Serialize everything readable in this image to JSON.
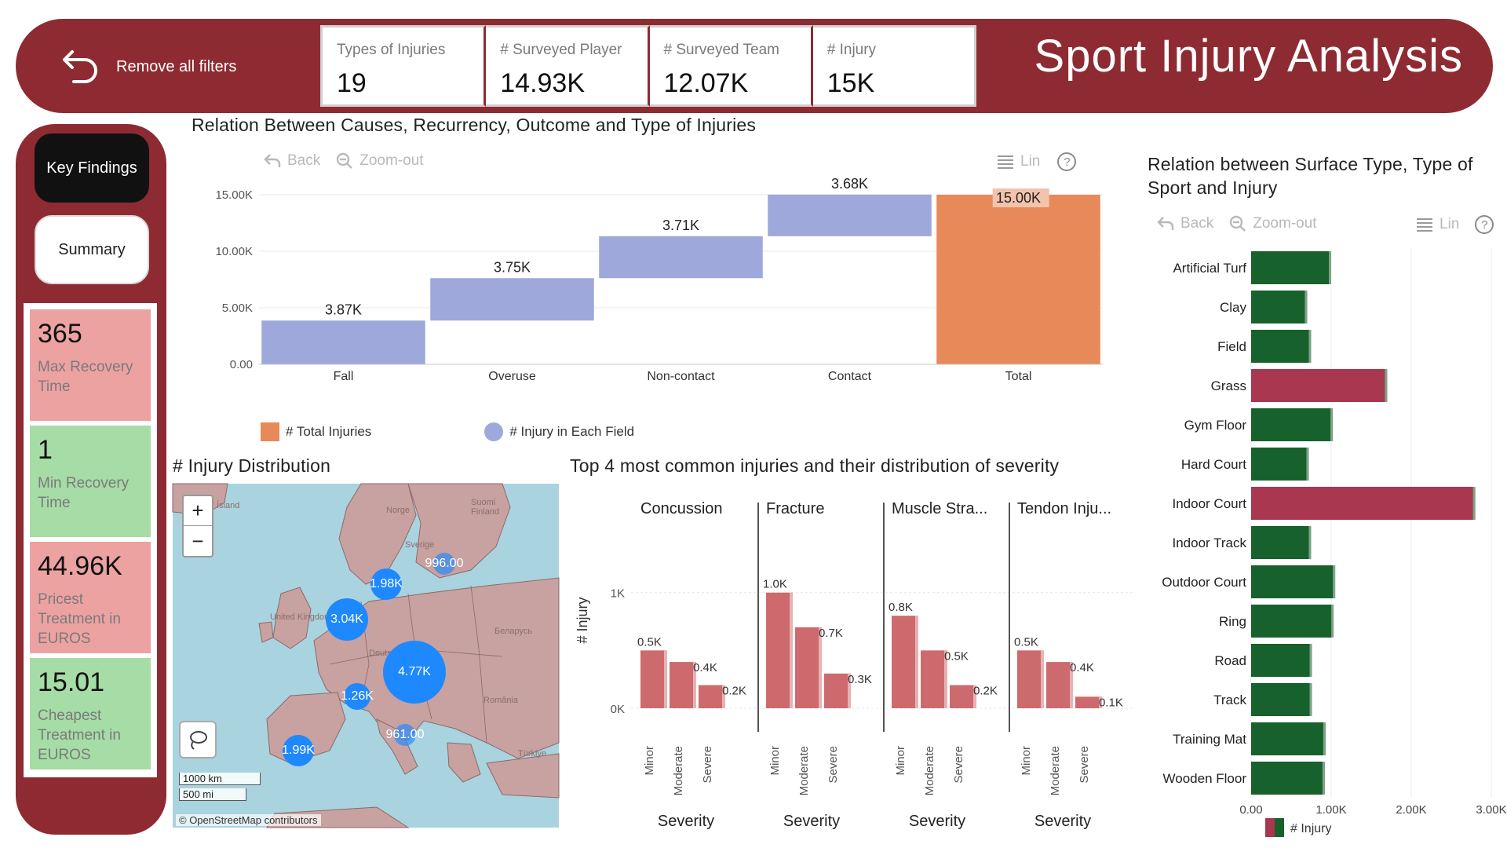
{
  "header": {
    "reset_label": "Remove all filters",
    "title": "Sport Injury Analysis",
    "kpis": [
      {
        "label": "Types of Injuries",
        "value": "19"
      },
      {
        "label": "# Surveyed Player",
        "value": "14.93K"
      },
      {
        "label": "# Surveyed Team",
        "value": "12.07K"
      },
      {
        "label": "# Injury",
        "value": "15K"
      }
    ]
  },
  "nav": {
    "key_findings": "Key Findings",
    "summary": "Summary"
  },
  "stats": [
    {
      "value": "365",
      "label": "Max Recovery Time",
      "tone": "red"
    },
    {
      "value": "1",
      "label": "Min Recovery Time",
      "tone": "green"
    },
    {
      "value": "44.96K",
      "label": "Pricest Treatment in EUROS",
      "tone": "red"
    },
    {
      "value": "15.01",
      "label": "Cheapest Treatment in EUROS",
      "tone": "green"
    }
  ],
  "toolbar": {
    "back": "Back",
    "zoom_out": "Zoom-out",
    "lin": "Lin",
    "help": "?"
  },
  "colors": {
    "brand": "#8e2b32",
    "waterfall_step": "#9fa8da",
    "waterfall_total": "#e8895a",
    "severity_bar": "#cd6a6e",
    "surface_high": "#a8374f",
    "surface_normal": "#17612d",
    "bubble": "#1e88ff"
  },
  "chart_data": [
    {
      "type": "bar",
      "subtype": "waterfall",
      "title": "Relation Between Causes, Recurrency, Outcome and Type of Injuries",
      "categories": [
        "Fall",
        "Overuse",
        "Non-contact",
        "Contact",
        "Total"
      ],
      "values": [
        3870,
        3750,
        3710,
        3680,
        15000
      ],
      "data_labels": [
        "3.87K",
        "3.75K",
        "3.71K",
        "3.68K",
        "15.00K"
      ],
      "yticks": [
        "0.00",
        "5.00K",
        "10.00K",
        "15.00K"
      ],
      "ylim": [
        0,
        15000
      ],
      "legend": [
        "# Total Injuries",
        "# Injury in Each Field"
      ],
      "legend_position": "bottom"
    },
    {
      "type": "bar",
      "subtype": "small-multiples",
      "title": "Top 4 most common injuries and their distribution of severity",
      "ylabel": "# Injury",
      "xlabel": "Severity",
      "yticks": [
        "0K",
        "1K"
      ],
      "ylim": [
        0,
        1100
      ],
      "categories": [
        "Minor",
        "Moderate",
        "Severe"
      ],
      "panels": [
        {
          "name": "Concussion",
          "values": [
            500,
            400,
            200
          ],
          "labels": [
            "0.5K",
            "0.4K",
            "0.2K"
          ]
        },
        {
          "name": "Fracture",
          "values": [
            1000,
            700,
            300
          ],
          "labels": [
            "1.0K",
            "0.7K",
            "0.3K"
          ]
        },
        {
          "name": "Muscle Stra...",
          "values": [
            800,
            500,
            200
          ],
          "labels": [
            "0.8K",
            "0.5K",
            "0.2K"
          ]
        },
        {
          "name": "Tendon Inju...",
          "values": [
            500,
            400,
            100
          ],
          "labels": [
            "0.5K",
            "0.4K",
            "0.1K"
          ]
        }
      ]
    },
    {
      "type": "bar",
      "orientation": "horizontal",
      "title": "Relation between Surface Type, Type of Sport and Injury",
      "categories": [
        "Artificial Turf",
        "Clay",
        "Field",
        "Grass",
        "Gym Floor",
        "Hard Court",
        "Indoor Court",
        "Indoor Track",
        "Outdoor Court",
        "Ring",
        "Road",
        "Track",
        "Training Mat",
        "Wooden Floor"
      ],
      "values": [
        1000,
        700,
        750,
        1700,
        1020,
        720,
        2800,
        750,
        1050,
        1030,
        760,
        760,
        930,
        920
      ],
      "xticks": [
        "0.00",
        "1.00K",
        "2.00K",
        "3.00K"
      ],
      "xlim": [
        0,
        3000
      ],
      "legend": [
        "# Injury"
      ]
    },
    {
      "type": "scatter",
      "subtype": "bubble-map",
      "title": "# Injury Distribution",
      "points": [
        {
          "label": "4.77K",
          "value": 4770
        },
        {
          "label": "3.04K",
          "value": 3040
        },
        {
          "label": "1.98K",
          "value": 1980
        },
        {
          "label": "1.99K",
          "value": 1990
        },
        {
          "label": "1.26K",
          "value": 1260
        },
        {
          "label": "996.00",
          "value": 996
        },
        {
          "label": "961.00",
          "value": 961
        }
      ],
      "scale_labels": [
        "1000 km",
        "500 mi"
      ],
      "attribution": "© OpenStreetMap contributors",
      "map_labels": [
        "Ísland",
        "Norge",
        "Suomi Finland",
        "Sverige",
        "United Kingdom",
        "Беларусь",
        "România",
        "Türkiye",
        "Deutschland"
      ]
    }
  ]
}
